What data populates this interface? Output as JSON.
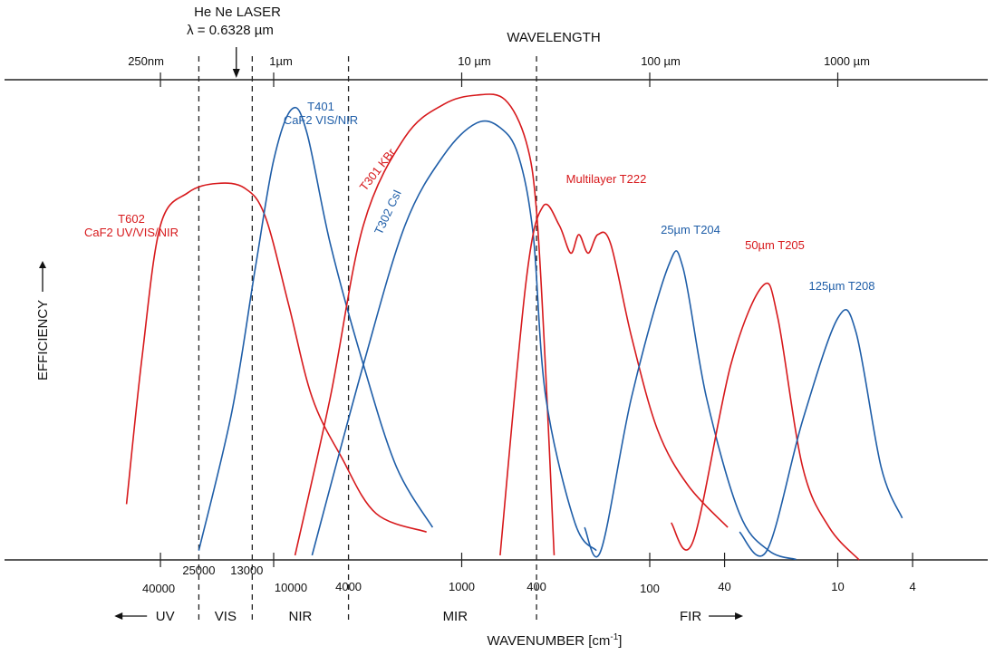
{
  "chart_data": {
    "type": "line",
    "title": "",
    "top_axis_label": "WAVELENGTH",
    "bottom_axis_label": "WAVENUMBER [cm",
    "bottom_axis_label_sup": "-1",
    "bottom_axis_label_end": "]",
    "ylabel": "EFFICIENCY",
    "top_ticks": [
      {
        "label": "250nm",
        "um": 0.25
      },
      {
        "label": "1µm",
        "um": 1
      },
      {
        "label": "10 µm",
        "um": 10
      },
      {
        "label": "100 µm",
        "um": 100
      },
      {
        "label": "1000 µm",
        "um": 1000
      }
    ],
    "bottom_ticks": [
      {
        "label": "40000",
        "wn": 40000
      },
      {
        "label": "25000",
        "wn": 25000
      },
      {
        "label": "13000",
        "wn": 13000
      },
      {
        "label": "10000",
        "wn": 10000
      },
      {
        "label": "4000",
        "wn": 4000
      },
      {
        "label": "1000",
        "wn": 1000
      },
      {
        "label": "400",
        "wn": 400
      },
      {
        "label": "100",
        "wn": 100
      },
      {
        "label": "40",
        "wn": 40
      },
      {
        "label": "10",
        "wn": 10
      },
      {
        "label": "4",
        "wn": 4
      }
    ],
    "boundaries_wn": [
      25000,
      13000,
      4000,
      400
    ],
    "regions": [
      {
        "label": "UV",
        "arrow": "left"
      },
      {
        "label": "VIS"
      },
      {
        "label": "NIR"
      },
      {
        "label": "MIR"
      },
      {
        "label": "FIR",
        "arrow": "right"
      }
    ],
    "laser": {
      "line1": "He Ne LASER",
      "line2": "λ = 0.6328 µm",
      "um": 0.6328
    },
    "ylim": [
      0,
      1
    ],
    "series": [
      {
        "name": "T602 CaF2 UV/VIS/NIR",
        "label_lines": [
          "T602",
          "CaF2 UV/VIS/NIR"
        ],
        "color": "#d7191c",
        "points": [
          [
            0.165,
            0.12
          ],
          [
            0.2,
            0.44
          ],
          [
            0.25,
            0.72
          ],
          [
            0.35,
            0.79
          ],
          [
            0.5,
            0.81
          ],
          [
            0.7,
            0.8
          ],
          [
            0.9,
            0.74
          ],
          [
            1.2,
            0.55
          ],
          [
            1.6,
            0.35
          ],
          [
            2.3,
            0.22
          ],
          [
            3.5,
            0.1
          ],
          [
            6.5,
            0.06
          ]
        ]
      },
      {
        "name": "T401 CaF2 VIS/NIR",
        "label_lines": [
          "T401",
          "CaF2 VIS/NIR"
        ],
        "color": "#1f5ea8",
        "points": [
          [
            0.4,
            0.02
          ],
          [
            0.6,
            0.32
          ],
          [
            0.8,
            0.63
          ],
          [
            1.0,
            0.86
          ],
          [
            1.25,
            0.97
          ],
          [
            1.5,
            0.92
          ],
          [
            2.0,
            0.68
          ],
          [
            3.0,
            0.42
          ],
          [
            4.5,
            0.2
          ],
          [
            7.0,
            0.07
          ]
        ]
      },
      {
        "name": "T301 KBr",
        "label_lines": [
          "T301 KBr"
        ],
        "color": "#d7191c",
        "label_rotate": -52,
        "points": [
          [
            1.3,
            0.01
          ],
          [
            2.0,
            0.35
          ],
          [
            3.0,
            0.72
          ],
          [
            5.0,
            0.91
          ],
          [
            8.0,
            0.98
          ],
          [
            12,
            1.0
          ],
          [
            17,
            0.99
          ],
          [
            22,
            0.9
          ],
          [
            25,
            0.75
          ],
          [
            28,
            0.4
          ],
          [
            31,
            0.01
          ]
        ]
      },
      {
        "name": "T302 CsI",
        "label_lines": [
          "T302 CsI"
        ],
        "color": "#1f5ea8",
        "label_rotate": -65,
        "points": [
          [
            1.6,
            0.01
          ],
          [
            3.0,
            0.42
          ],
          [
            5.0,
            0.72
          ],
          [
            8.0,
            0.87
          ],
          [
            12,
            0.94
          ],
          [
            16,
            0.93
          ],
          [
            20,
            0.87
          ],
          [
            24,
            0.7
          ],
          [
            28,
            0.35
          ],
          [
            40,
            0.08
          ],
          [
            52,
            0.02
          ]
        ]
      },
      {
        "name": "Multilayer T222",
        "label_lines": [
          "Multilayer T222"
        ],
        "color": "#d7191c",
        "points": [
          [
            16,
            0.01
          ],
          [
            22,
            0.6
          ],
          [
            27,
            0.76
          ],
          [
            33,
            0.72
          ],
          [
            38,
            0.66
          ],
          [
            42,
            0.7
          ],
          [
            47,
            0.66
          ],
          [
            53,
            0.7
          ],
          [
            62,
            0.68
          ],
          [
            80,
            0.48
          ],
          [
            110,
            0.28
          ],
          [
            160,
            0.16
          ],
          [
            260,
            0.07
          ]
        ]
      },
      {
        "name": "25µm T204",
        "label_lines": [
          "25µm T204"
        ],
        "color": "#1f5ea8",
        "points": [
          [
            45,
            0.07
          ],
          [
            55,
            0.02
          ],
          [
            80,
            0.35
          ],
          [
            125,
            0.63
          ],
          [
            150,
            0.63
          ],
          [
            200,
            0.35
          ],
          [
            300,
            0.1
          ],
          [
            430,
            0.02
          ],
          [
            600,
            0.001
          ]
        ]
      },
      {
        "name": "50µm T205",
        "label_lines": [
          "50µm T205"
        ],
        "color": "#d7191c",
        "points": [
          [
            130,
            0.08
          ],
          [
            170,
            0.04
          ],
          [
            270,
            0.42
          ],
          [
            400,
            0.59
          ],
          [
            480,
            0.52
          ],
          [
            650,
            0.2
          ],
          [
            900,
            0.07
          ],
          [
            1300,
            0.0
          ]
        ]
      },
      {
        "name": "125µm T208",
        "label_lines": [
          "125µm  T208"
        ],
        "color": "#1f5ea8",
        "points": [
          [
            300,
            0.06
          ],
          [
            420,
            0.02
          ],
          [
            650,
            0.3
          ],
          [
            1000,
            0.52
          ],
          [
            1250,
            0.49
          ],
          [
            1700,
            0.2
          ],
          [
            2200,
            0.09
          ]
        ]
      }
    ]
  }
}
